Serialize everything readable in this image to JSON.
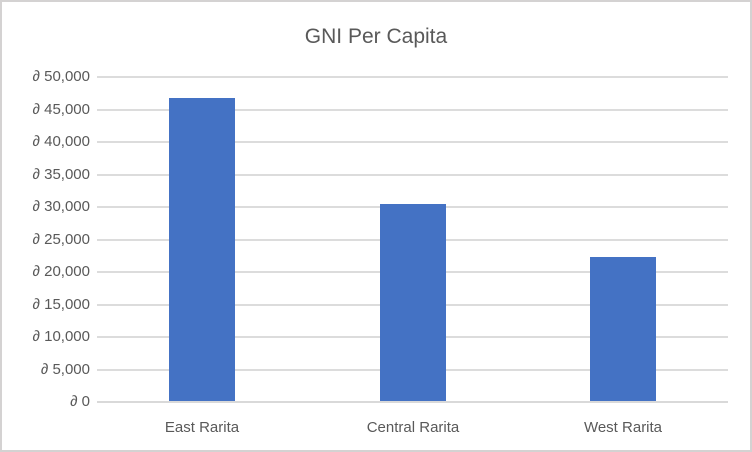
{
  "chart_data": {
    "type": "bar",
    "title": "GNI Per Capita",
    "categories": [
      "East Rarita",
      "Central Rarita",
      "West Rarita"
    ],
    "values": [
      46700,
      30500,
      22300
    ],
    "xlabel": "",
    "ylabel": "",
    "ylim": [
      0,
      50000
    ],
    "ytick_step": 5000,
    "ytick_labels": [
      "∂ 0",
      "∂ 5,000",
      "∂ 10,000",
      "∂ 15,000",
      "∂ 20,000",
      "∂ 25,000",
      "∂ 30,000",
      "∂ 35,000",
      "∂ 40,000",
      "∂ 45,000",
      "∂ 50,000"
    ],
    "currency_symbol": "∂",
    "grid": "horizontal",
    "legend": "none",
    "colors": {
      "bar": "#4472C4",
      "gridline": "#DCDCDC",
      "axis_line": "#D9D9D9",
      "text": "#595959",
      "border": "#D4D2D2",
      "background": "#FFFFFF"
    }
  }
}
